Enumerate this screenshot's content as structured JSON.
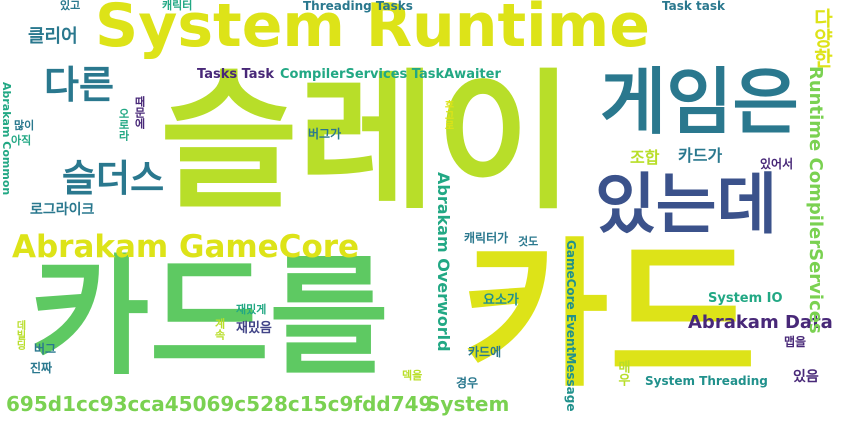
{
  "colors": {
    "yellow": "#dde318",
    "lime": "#b8de29",
    "green": "#5ec962",
    "lightgreen": "#7ad151",
    "teal": "#2a788e",
    "blue": "#3b528b",
    "purple": "#482878",
    "aqua": "#22a884",
    "dteal": "#21918c",
    "navy": "#414487"
  },
  "words": [
    {
      "text": "System Runtime",
      "color": "yellow"
    },
    {
      "text": "슬레이",
      "color": "lime"
    },
    {
      "text": "카드를",
      "color": "green"
    },
    {
      "text": "카드",
      "color": "yellow"
    },
    {
      "text": "게임은",
      "color": "teal"
    },
    {
      "text": "있는데",
      "color": "blue"
    },
    {
      "text": "Abrakam GameCore",
      "color": "yellow"
    },
    {
      "text": "다른",
      "color": "teal"
    },
    {
      "text": "슬더스",
      "color": "teal"
    },
    {
      "text": "695d1cc93cca45069c528c15c9fdd749",
      "color": "lightgreen"
    },
    {
      "text": "System",
      "color": "lightgreen"
    },
    {
      "text": "Abrakam Data",
      "color": "purple"
    },
    {
      "text": "Runtime CompilerServices",
      "color": "lightgreen"
    },
    {
      "text": "Abrakam Overworld",
      "color": "aqua"
    },
    {
      "text": "다양한",
      "color": "yellow"
    },
    {
      "text": "클리어",
      "color": "teal"
    },
    {
      "text": "CompilerServices TaskAwaiter",
      "color": "aqua"
    },
    {
      "text": "Tasks Task",
      "color": "purple"
    },
    {
      "text": "Threading Tasks",
      "color": "teal"
    },
    {
      "text": "Task task",
      "color": "teal"
    },
    {
      "text": "System IO",
      "color": "aqua"
    },
    {
      "text": "System Threading",
      "color": "dteal"
    },
    {
      "text": "GameCore EventMessage",
      "color": "dteal"
    },
    {
      "text": "조합",
      "color": "lime"
    },
    {
      "text": "카드가",
      "color": "teal"
    },
    {
      "text": "있어서",
      "color": "purple"
    },
    {
      "text": "있음",
      "color": "purple"
    },
    {
      "text": "맵을",
      "color": "purple"
    },
    {
      "text": "로그라이크",
      "color": "teal"
    },
    {
      "text": "버그가",
      "color": "teal"
    },
    {
      "text": "캐릭터가",
      "color": "teal"
    },
    {
      "text": "것도",
      "color": "teal"
    },
    {
      "text": "요소가",
      "color": "dteal"
    },
    {
      "text": "재밌음",
      "color": "navy"
    },
    {
      "text": "카드에",
      "color": "teal"
    },
    {
      "text": "경우",
      "color": "teal"
    },
    {
      "text": "매우",
      "color": "lime"
    },
    {
      "text": "때문에",
      "color": "purple"
    },
    {
      "text": "많이",
      "color": "teal"
    },
    {
      "text": "아직",
      "color": "aqua"
    },
    {
      "text": "오로라",
      "color": "aqua"
    },
    {
      "text": "후고로",
      "color": "yellow"
    },
    {
      "text": "Abrakam Common",
      "color": "aqua"
    },
    {
      "text": "있고",
      "color": "teal"
    },
    {
      "text": "캐릭터",
      "color": "aqua"
    },
    {
      "text": "재밌게",
      "color": "aqua"
    },
    {
      "text": "계속",
      "color": "lime"
    },
    {
      "text": "덱을",
      "color": "lime"
    },
    {
      "text": "버그",
      "color": "teal"
    },
    {
      "text": "진짜",
      "color": "teal"
    },
    {
      "text": "데빌딩",
      "color": "lime"
    }
  ]
}
